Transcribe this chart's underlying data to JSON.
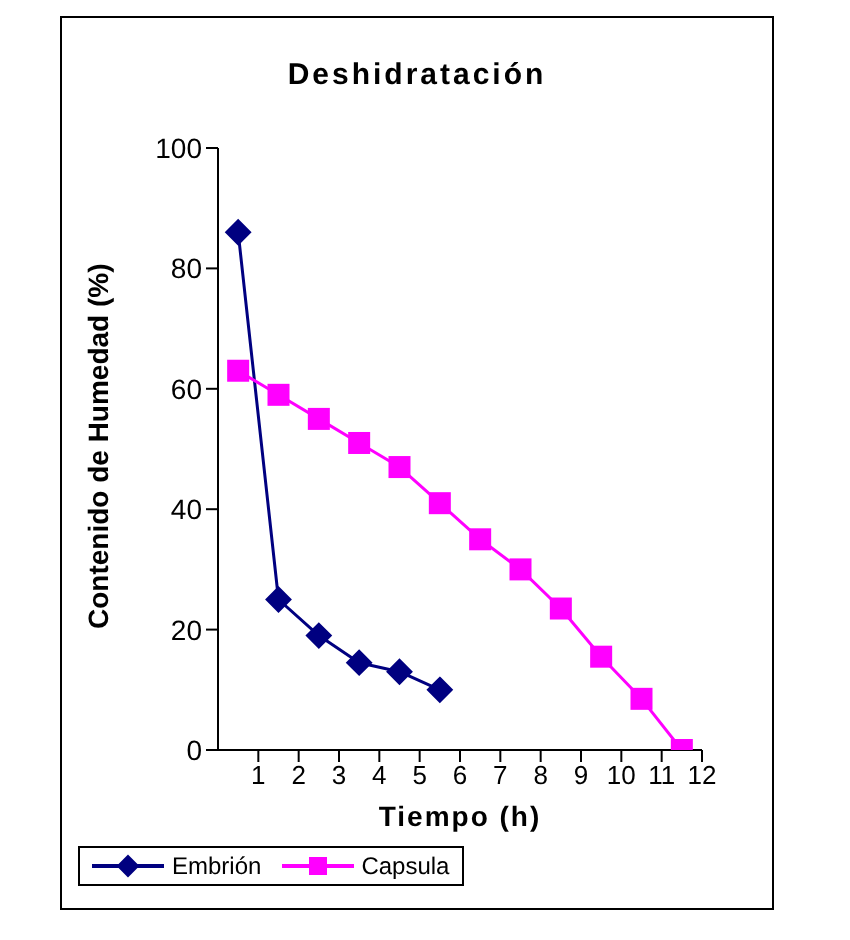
{
  "chart_data": {
    "type": "line",
    "title": "Deshidratación",
    "xlabel": "Tiempo (h)",
    "ylabel": "Contenido de Humedad (%)",
    "x": [
      0.5,
      1.5,
      2.5,
      3.5,
      4.5,
      5.5,
      6.5,
      7.5,
      8.5,
      9.5,
      10.5,
      11.5
    ],
    "series": [
      {
        "name": "Embrión",
        "color": "#000080",
        "marker": "diamond",
        "values": [
          86,
          25,
          19,
          14.5,
          13,
          10,
          null,
          null,
          null,
          null,
          null,
          null
        ]
      },
      {
        "name": "Capsula",
        "color": "#ff00ff",
        "marker": "square",
        "values": [
          63,
          59,
          55,
          51,
          47,
          41,
          35,
          30,
          23.5,
          15.5,
          8.5,
          0
        ]
      }
    ],
    "xlim": [
      0,
      12
    ],
    "xticks": [
      1,
      2,
      3,
      4,
      5,
      6,
      7,
      8,
      9,
      10,
      11,
      12
    ],
    "ylim": [
      0,
      100
    ],
    "yticks": [
      0,
      20,
      40,
      60,
      80,
      100
    ],
    "grid": false,
    "legend": "bottom"
  }
}
